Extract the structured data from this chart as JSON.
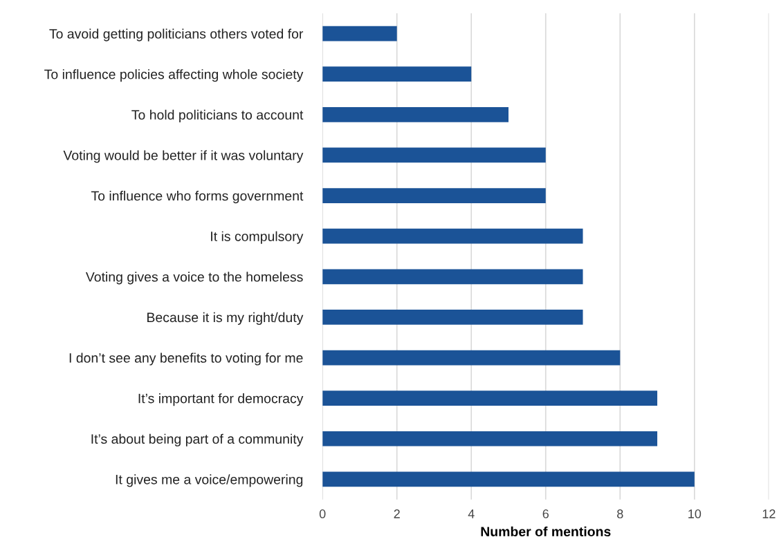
{
  "chart_data": {
    "type": "bar",
    "orientation": "horizontal",
    "xlabel": "Number of mentions",
    "categories": [
      "To avoid getting politicians others voted for",
      "To influence policies affecting whole society",
      "To hold politicians to account",
      "Voting would be better if it was voluntary",
      "To influence who forms government",
      "It is compulsory",
      "Voting gives a voice to the homeless",
      "Because it is my right/duty",
      "I don’t see any benefits to voting for me",
      "It’s important for democracy",
      "It’s about being part of a community",
      "It gives me a voice/empowering"
    ],
    "values": [
      2,
      4,
      5,
      6,
      6,
      7,
      7,
      7,
      8,
      9,
      9,
      10
    ],
    "color": "#1b5397",
    "xlim": [
      0,
      12
    ],
    "xticks": [
      0,
      2,
      4,
      6,
      8,
      10,
      12
    ],
    "grid": "x"
  }
}
